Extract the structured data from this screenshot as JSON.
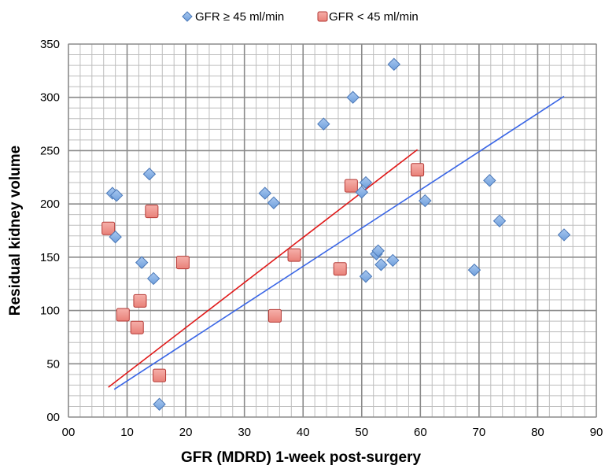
{
  "chart_data": {
    "type": "scatter",
    "xlabel": "GFR (MDRD) 1-week post-surgery",
    "ylabel": "Residual kidney volume",
    "xlim": [
      0,
      90
    ],
    "ylim": [
      0,
      350
    ],
    "x_ticks": [
      "00",
      "10",
      "20",
      "30",
      "40",
      "50",
      "60",
      "70",
      "80",
      "90"
    ],
    "y_ticks": [
      "00",
      "50",
      "100",
      "150",
      "200",
      "250",
      "300",
      "350"
    ],
    "x_tick_values": [
      0,
      10,
      20,
      30,
      40,
      50,
      60,
      70,
      80,
      90
    ],
    "y_tick_values": [
      0,
      50,
      100,
      150,
      200,
      250,
      300,
      350
    ],
    "grid": {
      "major": true,
      "minor": true,
      "minor_x_step": 2,
      "minor_y_step": 10
    },
    "legend": {
      "position": "top"
    },
    "series": [
      {
        "name": "GFR ≥ 45 ml/min",
        "marker": "diamond",
        "color": "#6f9fdc",
        "edge": "#4a78b8",
        "points": [
          [
            7.5,
            210
          ],
          [
            8.2,
            208
          ],
          [
            8,
            169
          ],
          [
            12.5,
            145
          ],
          [
            13.8,
            228
          ],
          [
            14.5,
            130
          ],
          [
            15.5,
            12
          ],
          [
            33.5,
            210
          ],
          [
            35,
            201
          ],
          [
            43.5,
            275
          ],
          [
            48.5,
            300
          ],
          [
            50,
            211
          ],
          [
            50.7,
            220
          ],
          [
            50.7,
            132
          ],
          [
            52.5,
            153
          ],
          [
            52.8,
            156
          ],
          [
            53.3,
            143
          ],
          [
            55.3,
            147
          ],
          [
            55.5,
            331
          ],
          [
            60.8,
            203
          ],
          [
            69.2,
            138
          ],
          [
            71.8,
            222
          ],
          [
            73.5,
            184
          ],
          [
            84.5,
            171
          ]
        ]
      },
      {
        "name": "GFR < 45 ml/min",
        "marker": "square",
        "color": "#e88078",
        "edge": "#b53a36",
        "points": [
          [
            6.8,
            177
          ],
          [
            9.3,
            96
          ],
          [
            11.7,
            84
          ],
          [
            12.2,
            109
          ],
          [
            14.2,
            193
          ],
          [
            15.5,
            39
          ],
          [
            19.5,
            145
          ],
          [
            35.2,
            95
          ],
          [
            38.5,
            152
          ],
          [
            46.3,
            139
          ],
          [
            48.2,
            217
          ],
          [
            59.5,
            232
          ]
        ]
      }
    ],
    "trendlines": [
      {
        "series": "GFR ≥ 45 ml/min",
        "color": "#3a66e6",
        "x": [
          7.8,
          84.5
        ],
        "y": [
          26,
          301
        ]
      },
      {
        "series": "GFR < 45 ml/min",
        "color": "#e01a1a",
        "x": [
          6.8,
          59.5
        ],
        "y": [
          28,
          251
        ]
      }
    ]
  }
}
